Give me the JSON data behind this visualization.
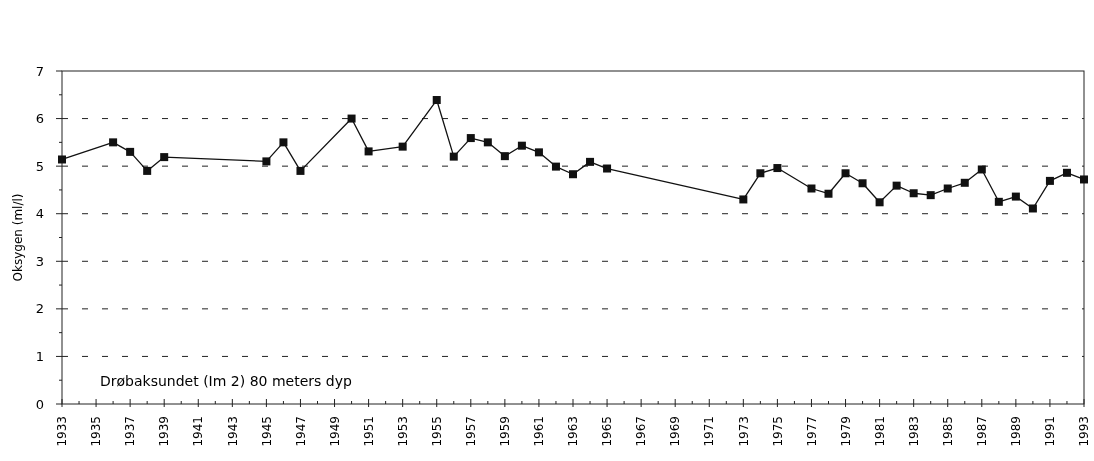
{
  "chart_data": {
    "type": "line",
    "ylabel": "Oksygen (ml/l)",
    "annotations": [
      "Drøbaksundet (Im 2) 80 meters dyp"
    ],
    "x": [
      1933,
      1936,
      1937,
      1938,
      1939,
      1945,
      1946,
      1947,
      1950,
      1951,
      1953,
      1955,
      1956,
      1957,
      1958,
      1959,
      1960,
      1961,
      1962,
      1963,
      1964,
      1965,
      1973,
      1974,
      1975,
      1977,
      1978,
      1979,
      1980,
      1981,
      1982,
      1983,
      1984,
      1985,
      1986,
      1987,
      1988,
      1989,
      1990,
      1991,
      1992,
      1993
    ],
    "series": [
      {
        "color": "#111111",
        "values": [
          5.14,
          5.5,
          5.3,
          4.9,
          5.19,
          5.1,
          5.5,
          4.9,
          6.0,
          5.31,
          5.41,
          6.39,
          5.2,
          5.59,
          5.5,
          5.21,
          5.43,
          5.29,
          4.99,
          4.83,
          5.09,
          4.95,
          4.3,
          4.85,
          4.96,
          4.53,
          4.42,
          4.85,
          4.64,
          4.24,
          4.59,
          4.43,
          4.39,
          4.53,
          4.65,
          4.93,
          4.25,
          4.36,
          4.11,
          4.69,
          4.86,
          4.72
        ]
      }
    ],
    "xlim": [
      1933,
      1993
    ],
    "xticks": [
      1933,
      {
        "value": 1934,
        "label": null
      },
      1935,
      {
        "value": 1936,
        "label": null
      },
      1937,
      {
        "value": 1938,
        "label": null
      },
      1939,
      {
        "value": 1940,
        "label": null
      },
      1941,
      {
        "value": 1942,
        "label": null
      },
      1943,
      {
        "value": 1944,
        "label": null
      },
      1945,
      {
        "value": 1946,
        "label": null
      },
      1947,
      {
        "value": 1948,
        "label": null
      },
      1949,
      {
        "value": 1950,
        "label": null
      },
      1951,
      {
        "value": 1952,
        "label": null
      },
      1953,
      {
        "value": 1954,
        "label": null
      },
      1955,
      {
        "value": 1956,
        "label": null
      },
      1957,
      {
        "value": 1958,
        "label": null
      },
      1959,
      {
        "value": 1960,
        "label": null
      },
      1961,
      {
        "value": 1962,
        "label": null
      },
      1963,
      {
        "value": 1964,
        "label": null
      },
      1965,
      {
        "value": 1966,
        "label": null
      },
      1967,
      {
        "value": 1968,
        "label": null
      },
      1969,
      {
        "value": 1970,
        "label": null
      },
      1971,
      {
        "value": 1972,
        "label": null
      },
      1973,
      {
        "value": 1974,
        "label": null
      },
      1975,
      {
        "value": 1976,
        "label": null
      },
      1977,
      {
        "value": 1978,
        "label": null
      },
      1979,
      {
        "value": 1980,
        "label": null
      },
      1981,
      {
        "value": 1982,
        "label": null
      },
      1983,
      {
        "value": 1984,
        "label": null
      },
      1985,
      {
        "value": 1986,
        "label": null
      },
      1987,
      {
        "value": 1988,
        "label": null
      },
      1989,
      {
        "value": 1990,
        "label": null
      },
      1991,
      {
        "value": 1992,
        "label": null
      },
      1993
    ],
    "ylim": [
      0,
      7
    ],
    "yticks": [
      0,
      {
        "value": 0.5,
        "label": null
      },
      1,
      {
        "value": 1.5,
        "label": null
      },
      2,
      {
        "value": 2.5,
        "label": null
      },
      3,
      {
        "value": 3.5,
        "label": null
      },
      4,
      {
        "value": 4.5,
        "label": null
      },
      5,
      {
        "value": 5.5,
        "label": null
      },
      6,
      {
        "value": 6.5,
        "label": null
      },
      7
    ],
    "grid": "y",
    "marker": "square",
    "line_style": "solid"
  }
}
